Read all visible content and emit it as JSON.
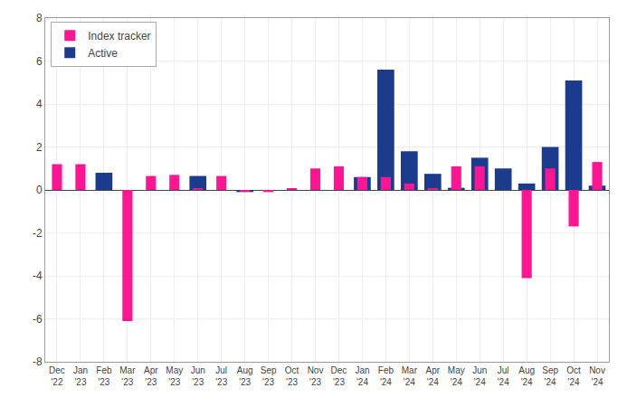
{
  "chart_data": {
    "type": "bar",
    "categories": [
      "Dec\n'22",
      "Jan\n'23",
      "Feb\n'23",
      "Mar\n'23",
      "Apr\n'23",
      "May\n'23",
      "Jun\n'23",
      "Jul\n'23",
      "Aug\n'23",
      "Sep\n'23",
      "Oct\n'23",
      "Nov\n'23",
      "Dec\n'23",
      "Jan\n'24",
      "Feb\n'24",
      "Mar\n'24",
      "Apr\n'24",
      "May\n'24",
      "Jun\n'24",
      "Jul\n'24",
      "Aug\n'24",
      "Sep\n'24",
      "Oct\n'24",
      "Nov\n'24"
    ],
    "series": [
      {
        "name": "Active",
        "color": "#1B3C8C",
        "values": [
          0.0,
          0.0,
          0.8,
          0.0,
          0.0,
          0.0,
          0.65,
          0.0,
          -0.1,
          0.0,
          0.0,
          0.0,
          0.0,
          0.6,
          5.6,
          1.8,
          0.75,
          0.1,
          1.5,
          1.0,
          0.3,
          2.0,
          5.1,
          0.2
        ]
      },
      {
        "name": "Index tracker",
        "color": "#FF1493",
        "values": [
          1.2,
          1.2,
          0.0,
          -6.1,
          0.65,
          0.7,
          0.05,
          0.65,
          -0.05,
          -0.1,
          0.05,
          1.0,
          1.1,
          0.6,
          0.6,
          0.3,
          0.05,
          1.1,
          1.1,
          0.0,
          -4.1,
          1.0,
          -1.7,
          1.3
        ]
      }
    ],
    "ylim": [
      -8,
      8
    ],
    "yticks": [
      -8,
      -6,
      -4,
      -2,
      0,
      2,
      4,
      6,
      8
    ],
    "grid": true,
    "legend": "upper left"
  }
}
